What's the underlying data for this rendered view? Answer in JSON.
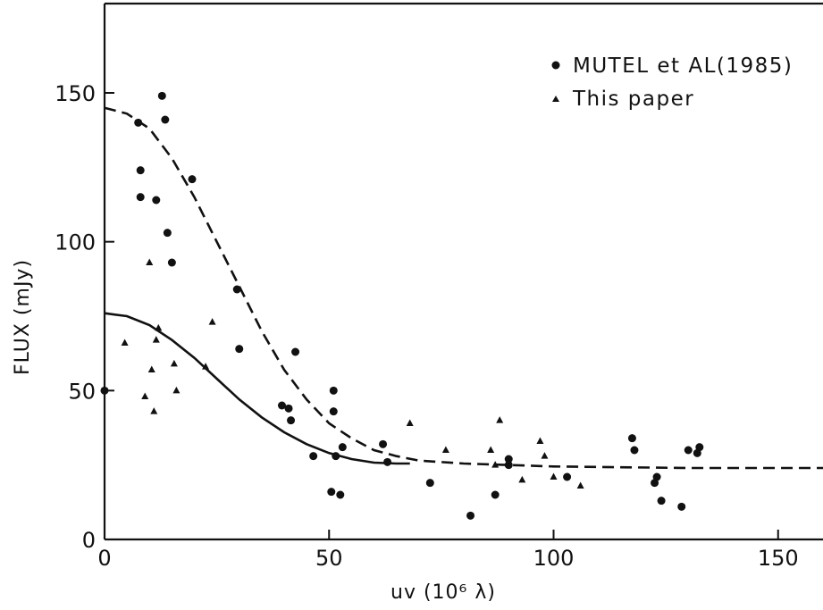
{
  "chart_data": {
    "type": "scatter",
    "xlabel": "uv (10⁶ λ)",
    "ylabel": "FLUX (mJy)",
    "xlim": [
      0,
      160
    ],
    "ylim": [
      0,
      180
    ],
    "x_ticks": [
      "0",
      "50",
      "100",
      "150"
    ],
    "y_ticks": [
      "0",
      "50",
      "100",
      "150"
    ],
    "x_tick_values": [
      0,
      50,
      100,
      150
    ],
    "y_tick_values": [
      0,
      50,
      100,
      150
    ],
    "grid": false,
    "legend_position": "top-right",
    "legend": [
      {
        "label": "MUTEL et AL(1985)",
        "marker": "circle"
      },
      {
        "label": "This paper",
        "marker": "triangle"
      }
    ],
    "series": [
      {
        "name": "MUTEL et AL(1985)",
        "marker": "circle",
        "points": [
          [
            0,
            50
          ],
          [
            7.5,
            140
          ],
          [
            8,
            124
          ],
          [
            8,
            115
          ],
          [
            11.5,
            114
          ],
          [
            12.8,
            149
          ],
          [
            13.5,
            141
          ],
          [
            14,
            103
          ],
          [
            15,
            93
          ],
          [
            19.5,
            121
          ],
          [
            29.5,
            84
          ],
          [
            30,
            64
          ],
          [
            39.5,
            45
          ],
          [
            41,
            44
          ],
          [
            41.5,
            40
          ],
          [
            42.5,
            63
          ],
          [
            46.5,
            28
          ],
          [
            50.5,
            16
          ],
          [
            51,
            43
          ],
          [
            51,
            50
          ],
          [
            51.5,
            28
          ],
          [
            52.5,
            15
          ],
          [
            53,
            31
          ],
          [
            62,
            32
          ],
          [
            63,
            26
          ],
          [
            72.5,
            19
          ],
          [
            81.5,
            8
          ],
          [
            87,
            15
          ],
          [
            90,
            25
          ],
          [
            90,
            27
          ],
          [
            103,
            21
          ],
          [
            117.5,
            34
          ],
          [
            118,
            30
          ],
          [
            122.5,
            19
          ],
          [
            123,
            21
          ],
          [
            124,
            13
          ],
          [
            128.5,
            11
          ],
          [
            130,
            30
          ],
          [
            132,
            29
          ],
          [
            132.5,
            31
          ]
        ]
      },
      {
        "name": "This paper",
        "marker": "triangle",
        "points": [
          [
            4.5,
            66
          ],
          [
            9,
            48
          ],
          [
            10,
            93
          ],
          [
            10.5,
            57
          ],
          [
            11,
            43
          ],
          [
            11.5,
            67
          ],
          [
            12,
            71
          ],
          [
            15.5,
            59
          ],
          [
            16,
            50
          ],
          [
            22.5,
            58
          ],
          [
            24,
            73
          ],
          [
            68,
            39
          ],
          [
            76,
            30
          ],
          [
            86,
            30
          ],
          [
            87,
            25
          ],
          [
            88,
            40
          ],
          [
            93,
            20
          ],
          [
            97,
            33
          ],
          [
            98,
            28
          ],
          [
            100,
            21
          ],
          [
            106,
            18
          ]
        ]
      }
    ],
    "curves": [
      {
        "style": "dashed",
        "points": [
          [
            0,
            145
          ],
          [
            5,
            143
          ],
          [
            10,
            138
          ],
          [
            15,
            128
          ],
          [
            20,
            115
          ],
          [
            25,
            100
          ],
          [
            30,
            85
          ],
          [
            35,
            70
          ],
          [
            40,
            57
          ],
          [
            45,
            47
          ],
          [
            50,
            39
          ],
          [
            55,
            34
          ],
          [
            60,
            30
          ],
          [
            65,
            28
          ],
          [
            70,
            26.5
          ],
          [
            80,
            25.5
          ],
          [
            100,
            24.5
          ],
          [
            130,
            24
          ],
          [
            160,
            24
          ]
        ]
      },
      {
        "style": "solid",
        "points": [
          [
            0,
            76
          ],
          [
            5,
            75
          ],
          [
            10,
            72
          ],
          [
            15,
            67
          ],
          [
            20,
            61
          ],
          [
            25,
            54
          ],
          [
            30,
            47
          ],
          [
            35,
            41
          ],
          [
            40,
            36
          ],
          [
            45,
            32
          ],
          [
            50,
            29
          ],
          [
            55,
            27
          ],
          [
            60,
            25.8
          ],
          [
            65,
            25.5
          ],
          [
            68,
            25.5
          ]
        ]
      }
    ]
  }
}
